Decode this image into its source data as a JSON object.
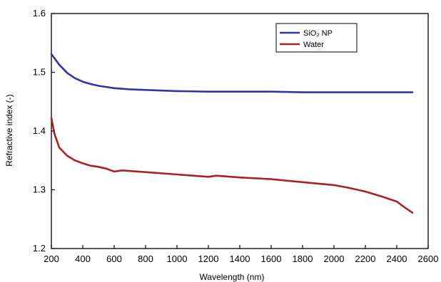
{
  "chart_data": {
    "type": "line",
    "title": "",
    "xlabel": "Wavelength (nm)",
    "ylabel": "Refractive index (-)",
    "xlim": [
      200,
      2600
    ],
    "ylim": [
      1.2,
      1.6
    ],
    "xticks": [
      200,
      400,
      600,
      800,
      1000,
      1200,
      1400,
      1600,
      1800,
      2000,
      2200,
      2400,
      2600
    ],
    "xtick_labels": [
      "200",
      "400",
      "600",
      "800",
      "1000",
      "1200",
      "1400",
      "1600",
      "1800",
      "2000",
      "2200",
      "2400",
      "2600"
    ],
    "yticks": [
      1.2,
      1.3,
      1.4,
      1.5,
      1.6
    ],
    "ytick_labels": [
      "1.2",
      "1.3",
      "1.4",
      "1.5",
      "1.6"
    ],
    "grid": false,
    "legend_position": "top-right",
    "series": [
      {
        "name": "SiO₂ NP",
        "color": "#3333a8",
        "x": [
          200,
          250,
          300,
          350,
          400,
          450,
          500,
          600,
          700,
          800,
          1000,
          1200,
          1400,
          1600,
          1800,
          2000,
          2200,
          2400,
          2500
        ],
        "y": [
          1.531,
          1.513,
          1.499,
          1.49,
          1.484,
          1.48,
          1.477,
          1.473,
          1.471,
          1.47,
          1.468,
          1.467,
          1.467,
          1.467,
          1.466,
          1.466,
          1.466,
          1.466,
          1.466
        ]
      },
      {
        "name": "Water",
        "color": "#aa2222",
        "x": [
          200,
          220,
          250,
          300,
          350,
          400,
          450,
          500,
          550,
          600,
          650,
          800,
          1000,
          1200,
          1250,
          1400,
          1600,
          1800,
          2000,
          2100,
          2200,
          2300,
          2400,
          2450,
          2500
        ],
        "y": [
          1.422,
          1.395,
          1.372,
          1.358,
          1.35,
          1.345,
          1.341,
          1.339,
          1.336,
          1.331,
          1.333,
          1.33,
          1.326,
          1.322,
          1.324,
          1.321,
          1.318,
          1.313,
          1.308,
          1.303,
          1.297,
          1.289,
          1.28,
          1.27,
          1.261
        ]
      }
    ]
  }
}
